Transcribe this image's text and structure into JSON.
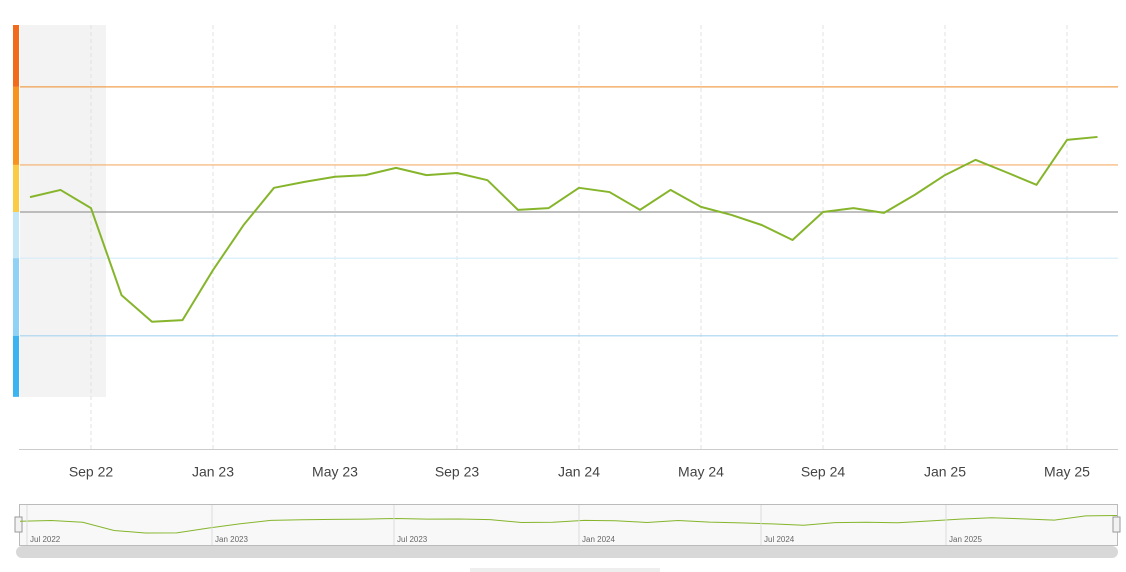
{
  "chart_data": {
    "type": "line",
    "categories": [
      null,
      null,
      "Sep 22",
      null,
      null,
      null,
      "Jan 23",
      null,
      null,
      null,
      "May 23",
      null,
      null,
      null,
      "Sep 23",
      null,
      null,
      null,
      "Jan 24",
      null,
      null,
      null,
      "May 24",
      null,
      null,
      null,
      "Sep 24",
      null,
      null,
      null,
      "Jan 25",
      null,
      null,
      null,
      "May 25",
      null
    ],
    "series": [
      {
        "color": "#86b52c",
        "values": [
          59.4,
          61.1,
          56.8,
          36.3,
          30.0,
          30.4,
          42.2,
          52.8,
          61.6,
          63.0,
          64.2,
          64.6,
          66.3,
          64.6,
          65.1,
          63.4,
          56.4,
          56.8,
          61.6,
          60.6,
          56.4,
          61.1,
          57.1,
          55.2,
          52.8,
          49.3,
          55.9,
          56.8,
          55.7,
          59.9,
          64.6,
          68.2,
          65.3,
          62.3,
          72.9,
          73.6
        ]
      }
    ],
    "ylim": [
      0,
      100
    ],
    "thresholds": [
      {
        "value": 85.4,
        "color": "#f0a050"
      },
      {
        "value": 67.0,
        "color": "#f5ae6a"
      },
      {
        "value": 55.9,
        "color": "#9a9a9a"
      },
      {
        "value": 45.0,
        "color": "#d4ecf8"
      },
      {
        "value": 26.7,
        "color": "#a8d3f0"
      }
    ],
    "bands": [
      {
        "from": 85.4,
        "to": 100,
        "color": "#f26b1d"
      },
      {
        "from": 67.0,
        "to": 85.4,
        "color": "#f7931e"
      },
      {
        "from": 55.9,
        "to": 67.0,
        "color": "#fbcb45"
      },
      {
        "from": 45.0,
        "to": 55.9,
        "color": "#c5e6f7"
      },
      {
        "from": 26.7,
        "to": 45.0,
        "color": "#8fd2f5"
      },
      {
        "from": 12.3,
        "to": 26.7,
        "color": "#3cb4f2"
      }
    ],
    "navigator_labels": [
      "Jul 2022",
      "Jan 2023",
      "Jul 2023",
      "Jan 2024",
      "Jul 2024",
      "Jan 2025"
    ]
  }
}
